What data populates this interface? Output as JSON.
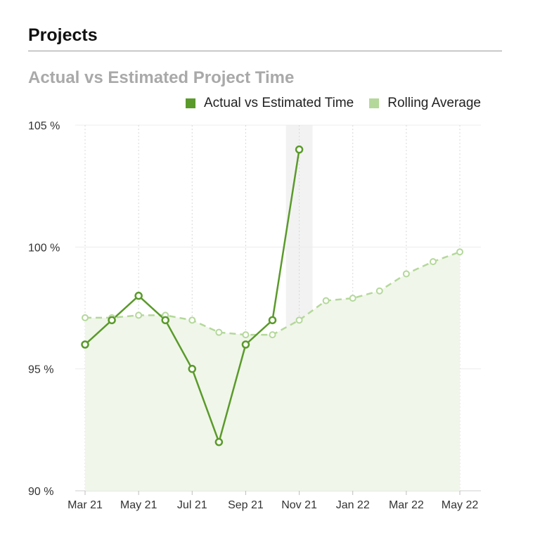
{
  "header": {
    "title": "Projects"
  },
  "chart_data": {
    "type": "line",
    "title": "Actual vs Estimated Project Time",
    "xlabel": "",
    "ylabel": "",
    "ylim": [
      90,
      105
    ],
    "y_ticks": [
      {
        "value": 90,
        "label": "90 %"
      },
      {
        "value": 95,
        "label": "95 %"
      },
      {
        "value": 100,
        "label": "100 %"
      },
      {
        "value": 105,
        "label": "105 %"
      }
    ],
    "x_ticks": [
      {
        "index": 0,
        "label": "Mar 21"
      },
      {
        "index": 2,
        "label": "May 21"
      },
      {
        "index": 4,
        "label": "Jul 21"
      },
      {
        "index": 6,
        "label": "Sep 21"
      },
      {
        "index": 8,
        "label": "Nov 21"
      },
      {
        "index": 10,
        "label": "Jan 22"
      },
      {
        "index": 12,
        "label": "Mar 22"
      },
      {
        "index": 14,
        "label": "May 22"
      }
    ],
    "x": [
      "2021-03",
      "2021-04",
      "2021-05",
      "2021-06",
      "2021-07",
      "2021-08",
      "2021-09",
      "2021-10",
      "2021-11",
      "2021-12",
      "2022-01",
      "2022-02",
      "2022-03",
      "2022-04",
      "2022-05"
    ],
    "highlight_index": 8,
    "legend_position": "top-right",
    "grid": true,
    "series": [
      {
        "name": "Actual vs Estimated Time",
        "color": "#5a9a2a",
        "style": "solid",
        "values": [
          96,
          97,
          98,
          97,
          95,
          92,
          96,
          97,
          104,
          null,
          null,
          null,
          null,
          null,
          null
        ]
      },
      {
        "name": "Rolling Average",
        "color": "#b4d89a",
        "fill": "#f0f6ea",
        "style": "dashed",
        "values": [
          97.1,
          97.1,
          97.2,
          97.2,
          97.0,
          96.5,
          96.4,
          96.4,
          97.0,
          97.8,
          97.9,
          98.2,
          98.9,
          99.4,
          99.8
        ]
      }
    ]
  }
}
